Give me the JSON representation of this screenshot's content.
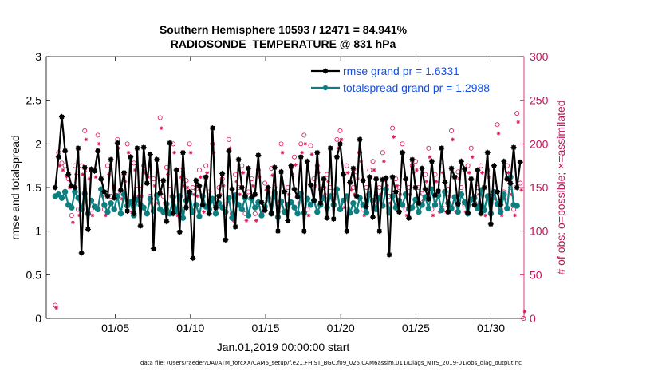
{
  "chart_data": {
    "type": "line",
    "title_line1": "Southern Hemisphere 10593 / 12471 = 84.941%",
    "title_line2": "RADIOSONDE_TEMPERATURE @ 831 hPa",
    "xlabel": "Jan.01,2019 00:00:00 start",
    "ylabel_left": "rmse and totalspread",
    "ylabel_right": "# of obs: o=possible; ×=assimilated",
    "xlim": [
      0.4,
      32.2
    ],
    "xticks": [
      {
        "v": 5,
        "label": "01/05"
      },
      {
        "v": 10,
        "label": "01/10"
      },
      {
        "v": 15,
        "label": "01/15"
      },
      {
        "v": 20,
        "label": "01/20"
      },
      {
        "v": 25,
        "label": "01/25"
      },
      {
        "v": 30,
        "label": "01/30"
      }
    ],
    "ylim_left": [
      0,
      3
    ],
    "yticks_left": [
      "0",
      "0.5",
      "1",
      "1.5",
      "2",
      "2.5",
      "3"
    ],
    "ylim_right": [
      0,
      300
    ],
    "yticks_right": [
      "0",
      "50",
      "100",
      "150",
      "200",
      "250",
      "300"
    ],
    "colors": {
      "rmse": "#000000",
      "spread": "#0e7f80",
      "obs": "#d9155a",
      "axis_right": "#c8105a",
      "legend_text": "#1450e6"
    },
    "series": [
      {
        "name": "rmse grand pr = 1.6331",
        "values": [
          1.5,
          1.85,
          2.31,
          1.92,
          1.65,
          1.52,
          1.5,
          1.95,
          0.75,
          1.73,
          1.02,
          1.71,
          1.69,
          1.92,
          1.6,
          1.45,
          1.4,
          1.82,
          1.38,
          2.01,
          1.47,
          1.67,
          1.23,
          1.85,
          1.2,
          1.95,
          1.06,
          1.96,
          1.55,
          1.88,
          0.8,
          1.82,
          1.43,
          1.58,
          1.11,
          2.01,
          1.2,
          1.7,
          0.99,
          1.9,
          1.27,
          1.45,
          0.69,
          1.58,
          1.52,
          1.3,
          1.62,
          1.2,
          2.18,
          1.27,
          1.4,
          1.66,
          0.9,
          1.92,
          1.48,
          1.05,
          1.82,
          1.5,
          1.4,
          1.72,
          1.39,
          1.42,
          1.87,
          1.33,
          1.24,
          1.5,
          1.2,
          1.73,
          1.0,
          1.68,
          1.45,
          1.12,
          1.75,
          1.48,
          1.39,
          1.85,
          1.0,
          1.8,
          1.53,
          1.35,
          1.9,
          1.32,
          1.6,
          1.15,
          1.95,
          1.14,
          1.85,
          2.0,
          1.65,
          1.0,
          1.56,
          1.72,
          1.4,
          2.05,
          1.58,
          1.28,
          1.62,
          1.16,
          1.6,
          1.0,
          1.59,
          1.61,
          0.73,
          1.62,
          1.45,
          1.22,
          1.9,
          1.6,
          1.15,
          1.82,
          1.5,
          1.32,
          1.72,
          1.48,
          1.37,
          1.8,
          1.41,
          1.46,
          1.95,
          1.56,
          1.22,
          1.72,
          1.62,
          1.31,
          1.8,
          1.71,
          1.21,
          1.6,
          1.3,
          1.7,
          1.2,
          1.5,
          1.9,
          1.08,
          1.75,
          1.45,
          1.3,
          1.8,
          1.6,
          1.55,
          1.96,
          1.5,
          1.79
        ]
      },
      {
        "name": "totalspread grand pr = 1.2988",
        "values": [
          1.4,
          1.42,
          1.38,
          1.45,
          1.3,
          1.27,
          1.45,
          1.38,
          1.25,
          1.43,
          1.2,
          1.35,
          1.28,
          1.25,
          1.48,
          1.3,
          1.22,
          1.32,
          1.25,
          1.4,
          1.2,
          1.42,
          1.29,
          1.33,
          1.18,
          1.36,
          1.3,
          1.27,
          1.2,
          1.37,
          1.23,
          1.41,
          1.25,
          1.22,
          1.31,
          1.2,
          1.39,
          1.23,
          1.4,
          1.15,
          1.35,
          1.43,
          1.22,
          1.3,
          1.17,
          1.4,
          1.28,
          1.25,
          1.37,
          1.2,
          1.32,
          1.27,
          1.22,
          1.38,
          1.15,
          1.41,
          1.3,
          1.25,
          1.38,
          1.18,
          1.37,
          1.27,
          1.33,
          1.18,
          1.28,
          1.38,
          1.2,
          1.44,
          1.16,
          1.34,
          1.22,
          1.3,
          1.33,
          1.27,
          1.2,
          1.43,
          1.21,
          1.37,
          1.3,
          1.35,
          1.22,
          1.3,
          1.38,
          1.27,
          1.4,
          1.3,
          1.48,
          1.25,
          1.35,
          1.4,
          1.21,
          1.32,
          1.23,
          1.38,
          1.3,
          1.21,
          1.42,
          1.35,
          1.25,
          1.38,
          1.29,
          1.48,
          1.21,
          1.4,
          1.27,
          1.35,
          1.3,
          1.42,
          1.25,
          1.27,
          1.36,
          1.22,
          1.3,
          1.39,
          1.26,
          1.48,
          1.3,
          1.41,
          1.24,
          1.45,
          1.32,
          1.26,
          1.39,
          1.22,
          1.42,
          1.33,
          1.2,
          1.36,
          1.38,
          1.26,
          1.47,
          1.24,
          1.4,
          1.2,
          1.45,
          1.31,
          1.22,
          1.42,
          1.26,
          1.62,
          1.3,
          1.29
        ]
      },
      {
        "name": "possible",
        "values": [
          15,
          190,
          178,
          175,
          160,
          118,
          175,
          125,
          175,
          215,
          170,
          125,
          170,
          210,
          148,
          125,
          175,
          140,
          150,
          205,
          145,
          165,
          200,
          130,
          178,
          148,
          148,
          175,
          170,
          140,
          160,
          140,
          230,
          140,
          173,
          148,
          200,
          125,
          170,
          160,
          158,
          200,
          150,
          148,
          170,
          130,
          175,
          145,
          200,
          135,
          150,
          160,
          130,
          205,
          120,
          165,
          150,
          175,
          120,
          145,
          160,
          120,
          170,
          130,
          155,
          145,
          172,
          150,
          130,
          200,
          130,
          150,
          173,
          185,
          140,
          200,
          210,
          125,
          198,
          160,
          175,
          148,
          150,
          165,
          150,
          145,
          205,
          215,
          135,
          175,
          155,
          150,
          168,
          190,
          125,
          150,
          170,
          180,
          140,
          150,
          190,
          160,
          140,
          218,
          160,
          150,
          200,
          125,
          150,
          175,
          180,
          150,
          143,
          165,
          195,
          125,
          165,
          130,
          175,
          130,
          148,
          215,
          130,
          168,
          150,
          130,
          175,
          195,
          140,
          150,
          175,
          125,
          170,
          140,
          145,
          222,
          125,
          145,
          175,
          150,
          125,
          235,
          155,
          0
        ]
      },
      {
        "name": "assimilated",
        "values": [
          12,
          175,
          170,
          163,
          150,
          110,
          165,
          118,
          165,
          205,
          160,
          118,
          162,
          200,
          140,
          118,
          165,
          132,
          142,
          195,
          137,
          157,
          190,
          122,
          170,
          140,
          140,
          167,
          162,
          132,
          152,
          132,
          218,
          132,
          165,
          140,
          190,
          118,
          162,
          152,
          150,
          190,
          142,
          140,
          162,
          122,
          167,
          137,
          190,
          128,
          142,
          152,
          122,
          195,
          112,
          157,
          142,
          167,
          112,
          137,
          152,
          112,
          162,
          122,
          147,
          137,
          164,
          142,
          122,
          190,
          122,
          142,
          165,
          176,
          132,
          190,
          200,
          118,
          188,
          152,
          167,
          140,
          142,
          157,
          142,
          137,
          195,
          205,
          127,
          167,
          147,
          142,
          160,
          180,
          118,
          142,
          162,
          170,
          132,
          142,
          180,
          152,
          132,
          208,
          152,
          142,
          190,
          118,
          142,
          167,
          170,
          142,
          135,
          157,
          185,
          118,
          157,
          122,
          167,
          122,
          140,
          205,
          122,
          160,
          142,
          122,
          167,
          185,
          132,
          142,
          167,
          118,
          162,
          132,
          137,
          212,
          118,
          137,
          167,
          142,
          118,
          225,
          147,
          8
        ]
      }
    ],
    "legend": {
      "placement": "top-right"
    }
  },
  "footer": "data file: /Users/raeder/DAI/ATM_forcXX/CAM6_setup/f.e21.FHIST_BGC.f09_025.CAM6assim.011/Diags_NTrS_2019-01/obs_diag_output.nc"
}
